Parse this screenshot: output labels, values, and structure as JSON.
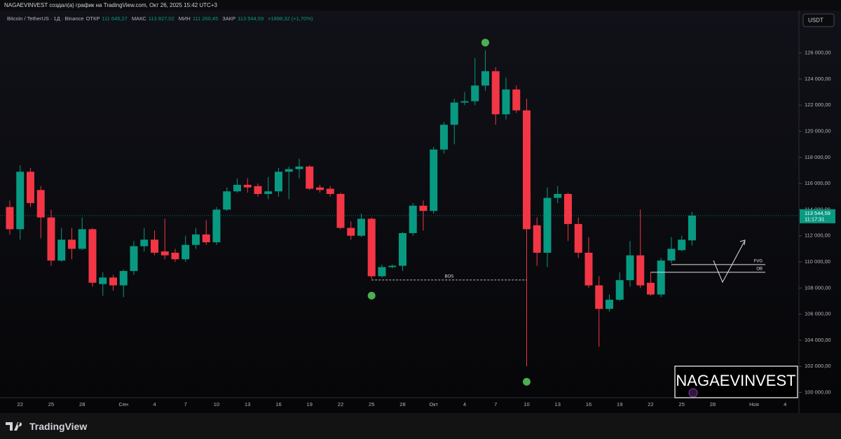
{
  "header": {
    "caption": "NAGAEVINVEST создал(а) график на TradingView.com, Окт 26, 2025 15:42 UTC+3"
  },
  "chart_data": {
    "type": "candlestick",
    "symbol": "Bitcoin / TetherUS · 1Д · Binance",
    "legend": {
      "open": {
        "label": "ОТКР",
        "value_label": "111 646,27"
      },
      "high": {
        "label": "МАКС",
        "value_label": "113 827,02"
      },
      "low": {
        "label": "МИН",
        "value_label": "111 260,45"
      },
      "close": {
        "label": "ЗАКР",
        "value_label": "113 544,59"
      },
      "change": "+1898,32 (+1,70%)"
    },
    "currency": "USDT",
    "categories": [
      null,
      "22",
      null,
      null,
      "25",
      null,
      null,
      "28",
      null,
      null,
      null,
      "Сен",
      null,
      null,
      "4",
      null,
      null,
      "7",
      null,
      null,
      "10",
      null,
      null,
      "13",
      null,
      null,
      "16",
      null,
      null,
      "19",
      null,
      null,
      "22",
      null,
      null,
      "25",
      null,
      null,
      "28",
      null,
      null,
      "Окт",
      null,
      null,
      "4",
      null,
      null,
      "7",
      null,
      null,
      "10",
      null,
      null,
      "13",
      null,
      null,
      "16",
      null,
      null,
      "19",
      null,
      null,
      "22",
      null,
      null,
      "25",
      null,
      null,
      "28",
      null,
      null,
      null,
      "Ноя",
      null,
      null,
      "4"
    ],
    "open": [
      114200,
      112500,
      116900,
      115500,
      113400,
      110100,
      111700,
      111000,
      112500,
      108300,
      108800,
      108200,
      109300,
      111200,
      111700,
      110800,
      110700,
      110200,
      111300,
      112100,
      111500,
      114000,
      115400,
      115900,
      115800,
      115200,
      115400,
      116900,
      117100,
      117300,
      115700,
      115600,
      115200,
      112600,
      112000,
      113300,
      108900,
      109600,
      109700,
      112200,
      114300,
      113900,
      118600,
      120500,
      122200,
      122300,
      123500,
      124600,
      121300,
      123200,
      121600,
      112800,
      110700,
      114900,
      115200,
      112900,
      110700,
      108200,
      106400,
      107100,
      108600,
      110500,
      108400,
      107500,
      110100,
      110900,
      111646.27,
      null,
      null,
      null,
      null,
      null,
      null,
      null,
      null,
      null
    ],
    "high": [
      114700,
      117400,
      117200,
      115800,
      114000,
      112600,
      112600,
      113400,
      112600,
      109200,
      109000,
      109400,
      111600,
      112600,
      112400,
      113300,
      111000,
      112000,
      112600,
      113200,
      114200,
      115700,
      116400,
      116400,
      116000,
      116500,
      117200,
      117300,
      117900,
      117400,
      115900,
      115800,
      115300,
      113100,
      113700,
      113400,
      109800,
      109800,
      112300,
      114500,
      114700,
      118800,
      120700,
      122500,
      123000,
      125600,
      126200,
      124900,
      124100,
      123500,
      122500,
      113400,
      115700,
      115800,
      115300,
      113400,
      111900,
      108900,
      107500,
      109200,
      111600,
      114000,
      109200,
      110300,
      111900,
      112000,
      113827.02,
      null,
      null,
      null,
      null,
      null,
      null,
      null,
      null,
      null
    ],
    "low": [
      112100,
      111700,
      114200,
      111800,
      109700,
      110000,
      110200,
      110900,
      108100,
      107400,
      107800,
      107300,
      109000,
      110800,
      110500,
      110200,
      110000,
      110000,
      111000,
      111300,
      111300,
      113900,
      115300,
      115300,
      115000,
      114800,
      115000,
      114800,
      116400,
      115500,
      115300,
      115000,
      112500,
      111700,
      111900,
      108700,
      108800,
      109500,
      109300,
      112000,
      112400,
      113700,
      118300,
      119000,
      122000,
      122000,
      123100,
      120500,
      120900,
      121400,
      102000,
      109700,
      109600,
      114500,
      111600,
      110300,
      108000,
      103500,
      106200,
      107000,
      108100,
      108000,
      107400,
      107300,
      109900,
      110800,
      111260.45,
      null,
      null,
      null,
      null,
      null,
      null,
      null,
      null,
      null
    ],
    "close": [
      112500,
      116900,
      114500,
      113400,
      110100,
      111700,
      111000,
      112500,
      108400,
      108800,
      108200,
      109300,
      111200,
      111700,
      110700,
      110500,
      110200,
      111300,
      112100,
      111500,
      114000,
      115400,
      115900,
      115700,
      115200,
      115400,
      116900,
      117100,
      117300,
      115600,
      115500,
      115200,
      112600,
      112000,
      113300,
      108900,
      109600,
      109700,
      112200,
      114300,
      113900,
      118600,
      120500,
      122200,
      122300,
      123500,
      124600,
      121300,
      123200,
      121600,
      112500,
      110700,
      114900,
      115200,
      112900,
      110700,
      108200,
      106400,
      107100,
      108600,
      110500,
      108200,
      107500,
      110100,
      111000,
      111700,
      113544.59,
      null,
      null,
      null,
      null,
      null,
      null,
      null,
      null,
      null
    ],
    "up_color": "#089981",
    "down_color": "#f23645",
    "ylim": [
      99600,
      129300
    ],
    "yticks": [
      {
        "value": 100000,
        "label": "100 000,00"
      },
      {
        "value": 102000,
        "label": "102 000,00"
      },
      {
        "value": 104000,
        "label": "104 000,00"
      },
      {
        "value": 106000,
        "label": "106 000,00"
      },
      {
        "value": 108000,
        "label": "108 000,00"
      },
      {
        "value": 110000,
        "label": "110 000,00"
      },
      {
        "value": 112000,
        "label": "112 000,00"
      },
      {
        "value": 114000,
        "label": "114 000,00"
      },
      {
        "value": 116000,
        "label": "116 000,00"
      },
      {
        "value": 118000,
        "label": "118 000,00"
      },
      {
        "value": 120000,
        "label": "120 000,00"
      },
      {
        "value": 122000,
        "label": "122 000,00"
      },
      {
        "value": 124000,
        "label": "124 000,00"
      },
      {
        "value": 126000,
        "label": "126 000,00"
      }
    ],
    "last_price": {
      "value": 113544.59,
      "label": "113 544,59",
      "countdown": "11:17:31"
    },
    "annotations": [
      {
        "text": "BOS",
        "value": 108610
      },
      {
        "text": "FVG",
        "value": 109790
      },
      {
        "text": "OB",
        "value": 109200
      }
    ],
    "watermark": "NAGAEVINVEST"
  },
  "footer": {
    "brand": "TradingView"
  }
}
